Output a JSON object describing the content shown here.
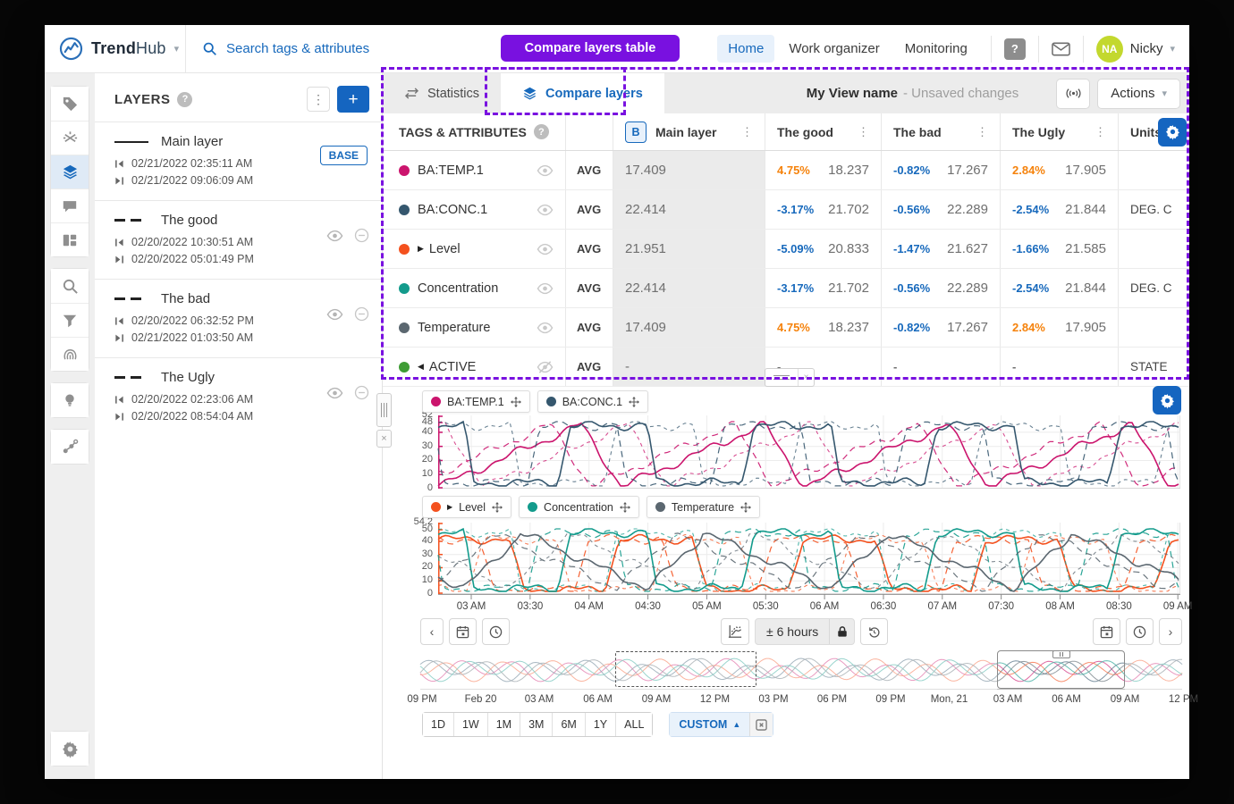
{
  "topbar": {
    "brand": {
      "bold": "Trend",
      "light": "Hub"
    },
    "search_placeholder": "Search tags & attributes",
    "nav": [
      {
        "label": "Home",
        "active": true
      },
      {
        "label": "Work organizer",
        "active": false
      },
      {
        "label": "Monitoring",
        "active": false
      }
    ],
    "user": {
      "initials": "NA",
      "name": "Nicky"
    }
  },
  "annotation": {
    "callout": "Compare layers table"
  },
  "rail": {
    "groups": [
      [
        "tag",
        "context",
        "layers",
        "comment",
        "dashboard"
      ],
      [
        "search",
        "funnel",
        "fingerprint"
      ],
      [
        "bulb"
      ],
      [
        "graph"
      ]
    ],
    "active": "layers",
    "bottom": "gear"
  },
  "layers_panel": {
    "title": "LAYERS",
    "layers": [
      {
        "name": "Main layer",
        "line": "solid",
        "start": "02/21/2022 02:35:11 AM",
        "end": "02/21/2022 09:06:09 AM",
        "badge": "BASE",
        "controls": false
      },
      {
        "name": "The good",
        "line": "dashed",
        "start": "02/20/2022 10:30:51 AM",
        "end": "02/20/2022 05:01:49 PM",
        "badge": "",
        "controls": true
      },
      {
        "name": "The bad",
        "line": "dashed",
        "start": "02/20/2022 06:32:52 PM",
        "end": "02/21/2022 01:03:50 AM",
        "badge": "",
        "controls": true
      },
      {
        "name": "The Ugly",
        "line": "dashed",
        "start": "02/20/2022 02:23:06 AM",
        "end": "02/20/2022 08:54:04 AM",
        "badge": "",
        "controls": true
      }
    ]
  },
  "view_header": {
    "tabs": [
      {
        "label": "Statistics",
        "active": false
      },
      {
        "label": "Compare layers",
        "active": true
      }
    ],
    "title": "My View name",
    "subtitle": "- Unsaved changes",
    "actions_label": "Actions"
  },
  "table": {
    "tags_header": "TAGS & ATTRIBUTES",
    "base_badge": "B",
    "columns": [
      {
        "label": "Main layer",
        "kebab": true,
        "base": true
      },
      {
        "label": "The good",
        "kebab": true,
        "base": false
      },
      {
        "label": "The bad",
        "kebab": true,
        "base": false
      },
      {
        "label": "The Ugly",
        "kebab": true,
        "base": false
      },
      {
        "label": "Units",
        "kebab": false,
        "base": false
      }
    ],
    "rows": [
      {
        "tag": "BA:TEMP.1",
        "dot_color": "#cb146d",
        "expand": "",
        "visible": true,
        "agg": "AVG",
        "main": "17.409",
        "cells": [
          {
            "pct": "4.75%",
            "pct_color": "#f5820b",
            "val": "18.237"
          },
          {
            "pct": "-0.82%",
            "pct_color": "#1769bc",
            "val": "17.267"
          },
          {
            "pct": "2.84%",
            "pct_color": "#f5820b",
            "val": "17.905"
          }
        ],
        "units": ""
      },
      {
        "tag": "BA:CONC.1",
        "dot_color": "#35576e",
        "expand": "",
        "visible": true,
        "agg": "AVG",
        "main": "22.414",
        "cells": [
          {
            "pct": "-3.17%",
            "pct_color": "#1769bc",
            "val": "21.702"
          },
          {
            "pct": "-0.56%",
            "pct_color": "#1769bc",
            "val": "22.289"
          },
          {
            "pct": "-2.54%",
            "pct_color": "#1769bc",
            "val": "21.844"
          }
        ],
        "units": "DEG. C"
      },
      {
        "tag": "Level",
        "dot_color": "#f4511e",
        "expand": "right",
        "visible": true,
        "agg": "AVG",
        "main": "21.951",
        "cells": [
          {
            "pct": "-5.09%",
            "pct_color": "#1769bc",
            "val": "20.833"
          },
          {
            "pct": "-1.47%",
            "pct_color": "#1769bc",
            "val": "21.627"
          },
          {
            "pct": "-1.66%",
            "pct_color": "#1769bc",
            "val": "21.585"
          }
        ],
        "units": ""
      },
      {
        "tag": "Concentration",
        "dot_color": "#139b8c",
        "expand": "",
        "visible": true,
        "agg": "AVG",
        "main": "22.414",
        "cells": [
          {
            "pct": "-3.17%",
            "pct_color": "#1769bc",
            "val": "21.702"
          },
          {
            "pct": "-0.56%",
            "pct_color": "#1769bc",
            "val": "22.289"
          },
          {
            "pct": "-2.54%",
            "pct_color": "#1769bc",
            "val": "21.844"
          }
        ],
        "units": "DEG. C"
      },
      {
        "tag": "Temperature",
        "dot_color": "#5b6770",
        "expand": "",
        "visible": true,
        "agg": "AVG",
        "main": "17.409",
        "cells": [
          {
            "pct": "4.75%",
            "pct_color": "#f5820b",
            "val": "18.237"
          },
          {
            "pct": "-0.82%",
            "pct_color": "#1769bc",
            "val": "17.267"
          },
          {
            "pct": "2.84%",
            "pct_color": "#f5820b",
            "val": "17.905"
          }
        ],
        "units": ""
      },
      {
        "tag": "ACTIVE",
        "dot_color": "#3f9c35",
        "expand": "left",
        "visible": false,
        "agg": "AVG",
        "main": "-",
        "cells": [
          {
            "pct": "-",
            "pct_color": "#6f6f6f",
            "val": ""
          },
          {
            "pct": "-",
            "pct_color": "#6f6f6f",
            "val": ""
          },
          {
            "pct": "-",
            "pct_color": "#6f6f6f",
            "val": ""
          }
        ],
        "units": "STATE"
      }
    ]
  },
  "chart_data": [
    {
      "type": "line",
      "series": [
        {
          "name": "BA:TEMP.1",
          "color": "#cb146d",
          "pattern": "saw",
          "expand": ""
        },
        {
          "name": "BA:CONC.1",
          "color": "#35576e",
          "pattern": "square",
          "expand": ""
        }
      ],
      "y_max_labels": [
        "52",
        "48"
      ],
      "y_ticks": [
        40,
        30,
        20,
        10,
        0
      ],
      "ylim": [
        0,
        52
      ],
      "axis_color": "#cb146d",
      "x_ticks": [
        "03 AM",
        "03:30",
        "04 AM",
        "04:30",
        "05 AM",
        "05:30",
        "06 AM",
        "06:30",
        "07 AM",
        "07:30",
        "08 AM",
        "08:30",
        "09 AM"
      ],
      "note": "solid = Main layer, dashed = comparison layers"
    },
    {
      "type": "line",
      "series": [
        {
          "name": "Level",
          "color": "#f4511e",
          "pattern": "plateau",
          "expand": "right"
        },
        {
          "name": "Concentration",
          "color": "#139b8c",
          "pattern": "square",
          "expand": ""
        },
        {
          "name": "Temperature",
          "color": "#5b6770",
          "pattern": "fallsaw",
          "expand": ""
        }
      ],
      "y_max_labels": [
        "54.2",
        "50"
      ],
      "y_ticks": [
        40,
        30,
        20,
        10,
        0
      ],
      "ylim": [
        0,
        54.2
      ],
      "axis_color": "#f4511e",
      "x_ticks": [
        "03 AM",
        "03:30",
        "04 AM",
        "04:30",
        "05 AM",
        "05:30",
        "06 AM",
        "06:30",
        "07 AM",
        "07:30",
        "08 AM",
        "08:30",
        "09 AM"
      ],
      "note": "solid = Main layer, dashed = comparison layers"
    }
  ],
  "chart_toolbar": {
    "range_label": "± 6 hours"
  },
  "context_timeline": {
    "ticks": [
      "09 PM",
      "Feb 20",
      "03 AM",
      "06 AM",
      "09 AM",
      "12 PM",
      "03 PM",
      "06 PM",
      "09 PM",
      "Mon, 21",
      "03 AM",
      "06 AM",
      "09 AM",
      "12 PM"
    ]
  },
  "range_buttons": [
    "1D",
    "1W",
    "1M",
    "3M",
    "6M",
    "1Y",
    "ALL"
  ],
  "custom_label": "CUSTOM",
  "colors": {
    "accent_blue": "#1769bc",
    "button_blue": "#1565c0",
    "annotation_purple": "#7911e0",
    "pct_up_orange": "#f5820b",
    "pct_down_blue": "#1769bc",
    "avatar_green": "#c3d82e",
    "main_col_bg": "#ebebeb"
  }
}
